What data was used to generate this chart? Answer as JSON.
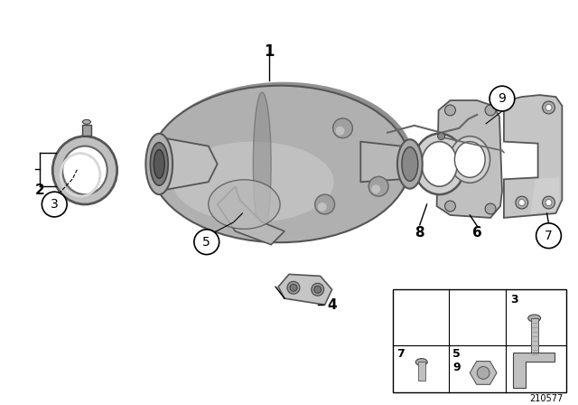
{
  "background_color": "#ffffff",
  "diagram_id": "210577",
  "body_color": "#a8a8a8",
  "body_dark": "#787878",
  "body_light": "#d0d0d0",
  "body_mid": "#b8b8b8",
  "line_color": "#000000",
  "text_color": "#000000",
  "part_colors": {
    "clamp": "#b0b0b0",
    "gasket": "#c8c8c8",
    "flange": "#c0c0c0",
    "bracket": "#c8c8c8"
  }
}
